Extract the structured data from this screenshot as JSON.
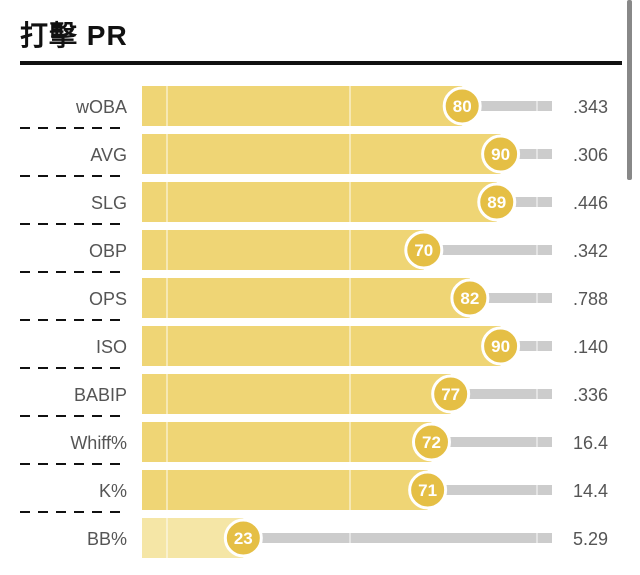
{
  "title": "打擊 PR",
  "colors": {
    "bar": "#efd575",
    "bar_low": "#f5e6a6",
    "circle": "#e5bf45",
    "track": "#cccccc",
    "rule": "#111111"
  },
  "chart_data": {
    "type": "bar",
    "orientation": "horizontal",
    "title": "打擊 PR",
    "xlim": [
      0,
      100
    ],
    "categories": [
      "wOBA",
      "AVG",
      "SLG",
      "OBP",
      "OPS",
      "ISO",
      "BABIP",
      "Whiff%",
      "K%",
      "BB%"
    ],
    "percentiles": [
      80,
      90,
      89,
      70,
      82,
      90,
      77,
      72,
      71,
      23
    ],
    "values": [
      ".343",
      ".306",
      ".446",
      ".342",
      ".788",
      ".140",
      ".336",
      "16.4",
      "14.4",
      "5.29"
    ]
  }
}
